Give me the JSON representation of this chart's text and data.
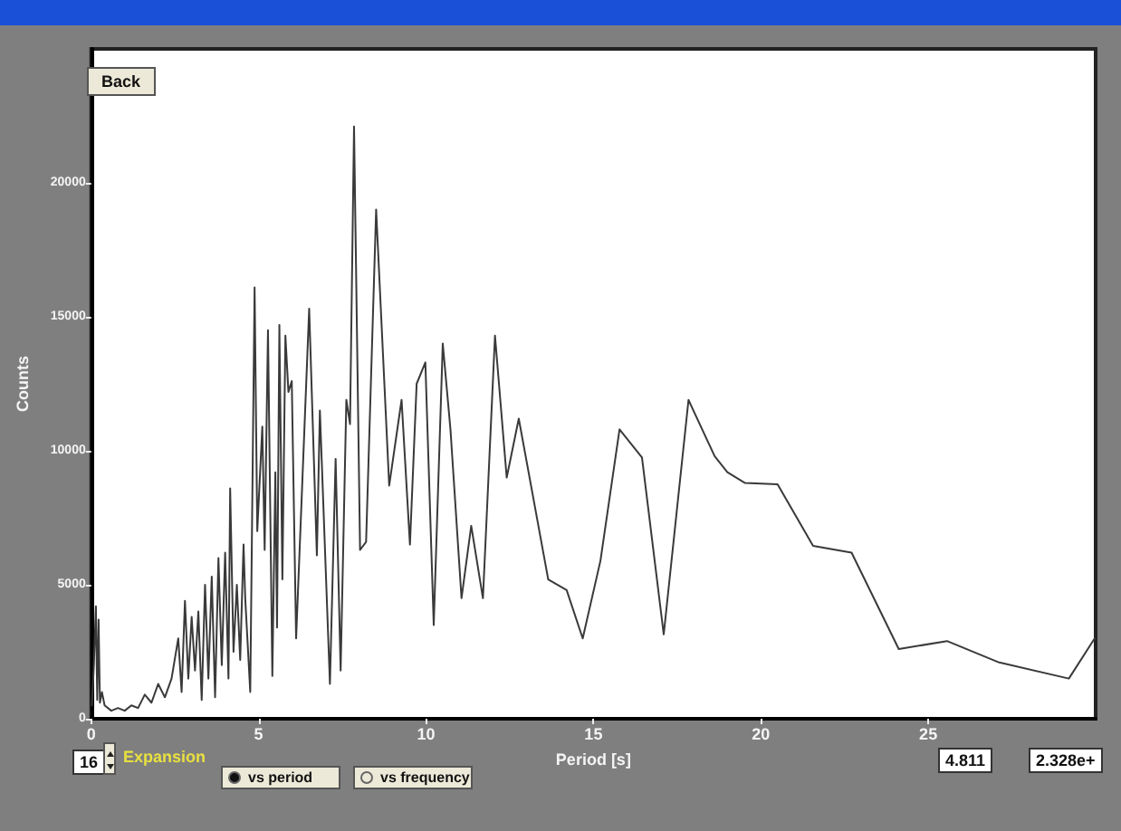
{
  "chart_data": {
    "type": "line",
    "xlabel": "Period [s]",
    "ylabel": "Counts",
    "xlim": [
      0,
      30
    ],
    "xticks": [
      0,
      5,
      10,
      15,
      20,
      25
    ],
    "ylim": [
      0,
      25000
    ],
    "yticks": [
      0,
      5000,
      10000,
      15000,
      20000
    ],
    "grid": false,
    "marker": "none",
    "line_style": "solid",
    "annotations": [
      "Back",
      "16",
      "Expansion",
      "vs period",
      "vs frequency",
      "4.811",
      "2.328e+"
    ],
    "series": [
      {
        "color": "#3a3a3a",
        "x": [
          0.02,
          0.08,
          0.14,
          0.18,
          0.22,
          0.26,
          0.32,
          0.4,
          0.6,
          0.8,
          1.0,
          1.2,
          1.4,
          1.6,
          1.8,
          2.0,
          2.2,
          2.4,
          2.6,
          2.7,
          2.8,
          2.9,
          3.0,
          3.1,
          3.2,
          3.3,
          3.4,
          3.5,
          3.6,
          3.7,
          3.8,
          3.9,
          4.0,
          4.1,
          4.15,
          4.25,
          4.35,
          4.45,
          4.55,
          4.6,
          4.75,
          4.88,
          4.96,
          5.11,
          5.18,
          5.28,
          5.41,
          5.5,
          5.55,
          5.62,
          5.71,
          5.8,
          5.89,
          5.99,
          6.12,
          6.51,
          6.74,
          6.83,
          7.13,
          7.3,
          7.45,
          7.62,
          7.73,
          7.85,
          8.03,
          8.21,
          8.51,
          8.9,
          9.27,
          9.52,
          9.72,
          9.98,
          10.23,
          10.5,
          10.73,
          11.06,
          11.35,
          11.7,
          12.06,
          12.41,
          12.77,
          13.65,
          14.2,
          14.68,
          15.21,
          15.78,
          16.45,
          17.1,
          17.84,
          18.62,
          19.0,
          19.53,
          20.5,
          21.56,
          22.71,
          24.12,
          25.56,
          27.12,
          29.2,
          29.97
        ],
        "values": [
          500,
          2000,
          4200,
          700,
          3700,
          600,
          1000,
          500,
          300,
          400,
          300,
          500,
          400,
          900,
          600,
          1300,
          800,
          1500,
          3000,
          1000,
          4400,
          1500,
          3800,
          1800,
          4000,
          700,
          5000,
          1500,
          5300,
          800,
          6000,
          2000,
          6200,
          1500,
          8600,
          2500,
          5000,
          2200,
          6500,
          4500,
          1000,
          16100,
          7000,
          10900,
          6300,
          14500,
          1600,
          9200,
          3400,
          14700,
          5200,
          14300,
          12200,
          12600,
          3000,
          15300,
          6100,
          11500,
          1300,
          9700,
          1800,
          11900,
          11000,
          22100,
          6300,
          6600,
          19000,
          8700,
          11900,
          6500,
          12500,
          13300,
          3500,
          14000,
          10800,
          4500,
          7200,
          4500,
          14300,
          9000,
          11200,
          5200,
          4800,
          3000,
          5900,
          10800,
          9750,
          3150,
          11900,
          9800,
          9200,
          8800,
          8750,
          6450,
          6200,
          2600,
          2900,
          2100,
          1500,
          3000
        ]
      }
    ]
  }
}
